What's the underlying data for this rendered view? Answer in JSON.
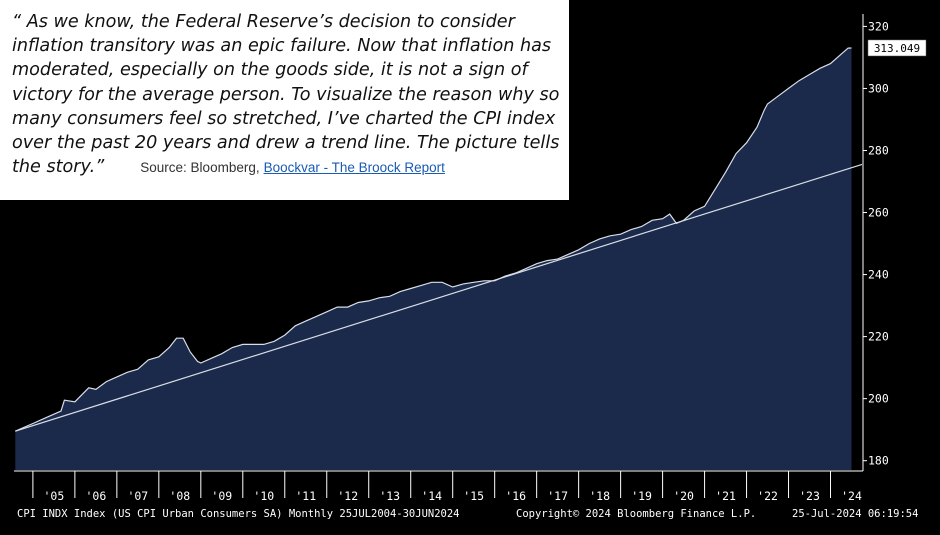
{
  "quote": {
    "text": "“ As we know, the Federal Reserve’s decision to consider inflation transitory was an epic failure. Now that inflation has moderated, especially on the goods side, it is not a sign of victory for the average person. To visualize the reason why so many consumers feel so stretched, I’ve charted the CPI index over the past 20 years and drew a trend line. The picture tells the story.”",
    "source_label": "Source: Bloomberg,",
    "source_link": "Boockvar - The Broock Report"
  },
  "footer": {
    "index_desc": "CPI INDX Index (US CPI Urban Consumers SA) Monthly 25JUL2004-30JUN2024",
    "copyright": "Copyright© 2024 Bloomberg Finance L.P.",
    "timestamp": "25-Jul-2024 06:19:54"
  },
  "colors": {
    "background": "#000000",
    "area_fill": "#1b2a4a",
    "line": "#d8dde6",
    "axis": "#ffffff",
    "last_value_box": "#ffffff"
  },
  "chart_data": {
    "type": "area",
    "title": "",
    "xlabel": "",
    "ylabel": "",
    "x_tick_labels": [
      "'05",
      "'06",
      "'07",
      "'08",
      "'09",
      "'10",
      "'11",
      "'12",
      "'13",
      "'14",
      "'15",
      "'16",
      "'17",
      "'18",
      "'19",
      "'20",
      "'21",
      "'22",
      "'23",
      "'24"
    ],
    "y_ticks": [
      180,
      200,
      220,
      240,
      260,
      280,
      300,
      320
    ],
    "ylim": [
      177,
      324
    ],
    "xlim": [
      2004.55,
      2024.75
    ],
    "last_value_label": "313.049",
    "series": [
      {
        "x": [
          2004.58,
          2004.75,
          2005.0,
          2005.25,
          2005.5,
          2005.67,
          2005.75,
          2006.0,
          2006.33,
          2006.5,
          2006.75,
          2007.0,
          2007.25,
          2007.5,
          2007.75,
          2008.0,
          2008.25,
          2008.42,
          2008.58,
          2008.75,
          2008.92,
          2009.0,
          2009.25,
          2009.5,
          2009.75,
          2010.0,
          2010.25,
          2010.5,
          2010.75,
          2011.0,
          2011.25,
          2011.5,
          2011.75,
          2012.0,
          2012.25,
          2012.5,
          2012.75,
          2013.0,
          2013.25,
          2013.5,
          2013.75,
          2014.0,
          2014.25,
          2014.5,
          2014.75,
          2015.0,
          2015.25,
          2015.5,
          2015.75,
          2016.0,
          2016.25,
          2016.5,
          2016.75,
          2017.0,
          2017.25,
          2017.5,
          2017.75,
          2018.0,
          2018.25,
          2018.5,
          2018.75,
          2019.0,
          2019.25,
          2019.5,
          2019.75,
          2020.0,
          2020.17,
          2020.33,
          2020.5,
          2020.75,
          2021.0,
          2021.25,
          2021.5,
          2021.75,
          2022.0,
          2022.25,
          2022.42,
          2022.5,
          2022.75,
          2023.0,
          2023.25,
          2023.5,
          2023.75,
          2024.0,
          2024.25,
          2024.42,
          2024.5
        ],
        "values": [
          189.5,
          190.5,
          192,
          193.5,
          195,
          196,
          199.5,
          199,
          203.5,
          203,
          205.5,
          207,
          208.5,
          209.5,
          212.5,
          213.5,
          216.5,
          219.5,
          219.5,
          215,
          212,
          211.5,
          213,
          214.5,
          216.5,
          217.5,
          217.5,
          217.5,
          218.5,
          220.5,
          223.5,
          225,
          226.5,
          228,
          229.5,
          229.5,
          231,
          231.5,
          232.5,
          233,
          234.5,
          235.5,
          236.5,
          237.5,
          237.5,
          236,
          237,
          237.5,
          238,
          238,
          239.5,
          240.5,
          242,
          243.5,
          244.5,
          245,
          246.5,
          248,
          250,
          251.5,
          252.5,
          253,
          254.5,
          255.5,
          257.5,
          258,
          259.5,
          256.5,
          257.5,
          260.5,
          262,
          267.5,
          273,
          279,
          282.5,
          287.5,
          293,
          295,
          297.5,
          300,
          302.5,
          304.5,
          306.5,
          308,
          311,
          313,
          313.05
        ]
      },
      {
        "name": "",
        "type": "trend-line",
        "x": [
          2004.58,
          2024.75
        ],
        "values": [
          189.5,
          275.5
        ]
      }
    ]
  }
}
